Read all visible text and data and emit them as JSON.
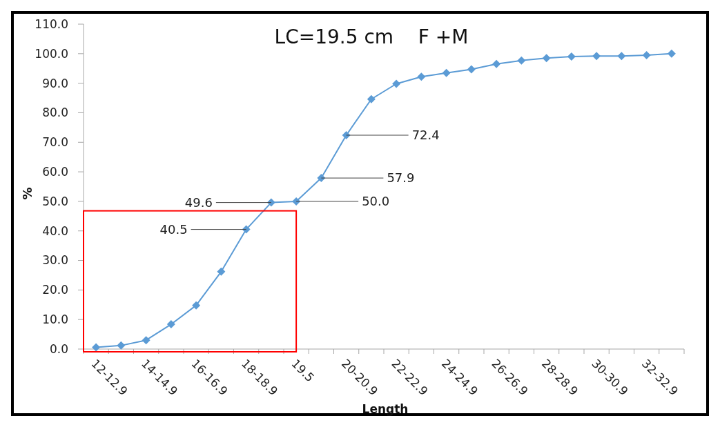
{
  "chart_data": {
    "type": "line",
    "title": "LC=19.5 cm    F +M",
    "xlabel": "Length",
    "ylabel": "%",
    "categories": [
      "12-12.9",
      null,
      "14-14.9",
      null,
      "16-16.9",
      null,
      "18-18.9",
      null,
      "19.5",
      null,
      "20-20.9",
      null,
      "22-22.9",
      null,
      "24-24.9",
      null,
      "26-26.9",
      null,
      "28-28.9",
      null,
      "30-30.9",
      null,
      "32-32.9",
      null
    ],
    "series": [
      {
        "color": "#5b9bd5",
        "values": [
          0.6,
          1.2,
          3.0,
          8.4,
          14.8,
          26.2,
          40.5,
          49.6,
          50.0,
          57.9,
          72.4,
          84.6,
          89.8,
          92.2,
          93.5,
          94.7,
          96.5,
          97.7,
          98.5,
          99.0,
          99.2,
          99.2,
          99.5,
          100.0
        ],
        "value_labels": [
          null,
          null,
          null,
          null,
          null,
          null,
          "40.5",
          "49.6",
          "50.0",
          "57.9",
          "72.4",
          null,
          null,
          null,
          null,
          null,
          null,
          null,
          null,
          null,
          null,
          null,
          null,
          null
        ]
      }
    ],
    "ylim": [
      0,
      110
    ],
    "yticks": [
      {
        "value": 0,
        "label": "0.0"
      },
      {
        "value": 10,
        "label": "10.0"
      },
      {
        "value": 20,
        "label": "20.0"
      },
      {
        "value": 30,
        "label": "30.0"
      },
      {
        "value": 40,
        "label": "40.0"
      },
      {
        "value": 50,
        "label": "50.0"
      },
      {
        "value": 60,
        "label": "60.0"
      },
      {
        "value": 70,
        "label": "70.0"
      },
      {
        "value": 80,
        "label": "80.0"
      },
      {
        "value": 90,
        "label": "90.0"
      },
      {
        "value": 100,
        "label": "100.0"
      },
      {
        "value": 110,
        "label": "110.0"
      }
    ],
    "grid": false,
    "marker": "diamond",
    "line_style": "solid"
  }
}
